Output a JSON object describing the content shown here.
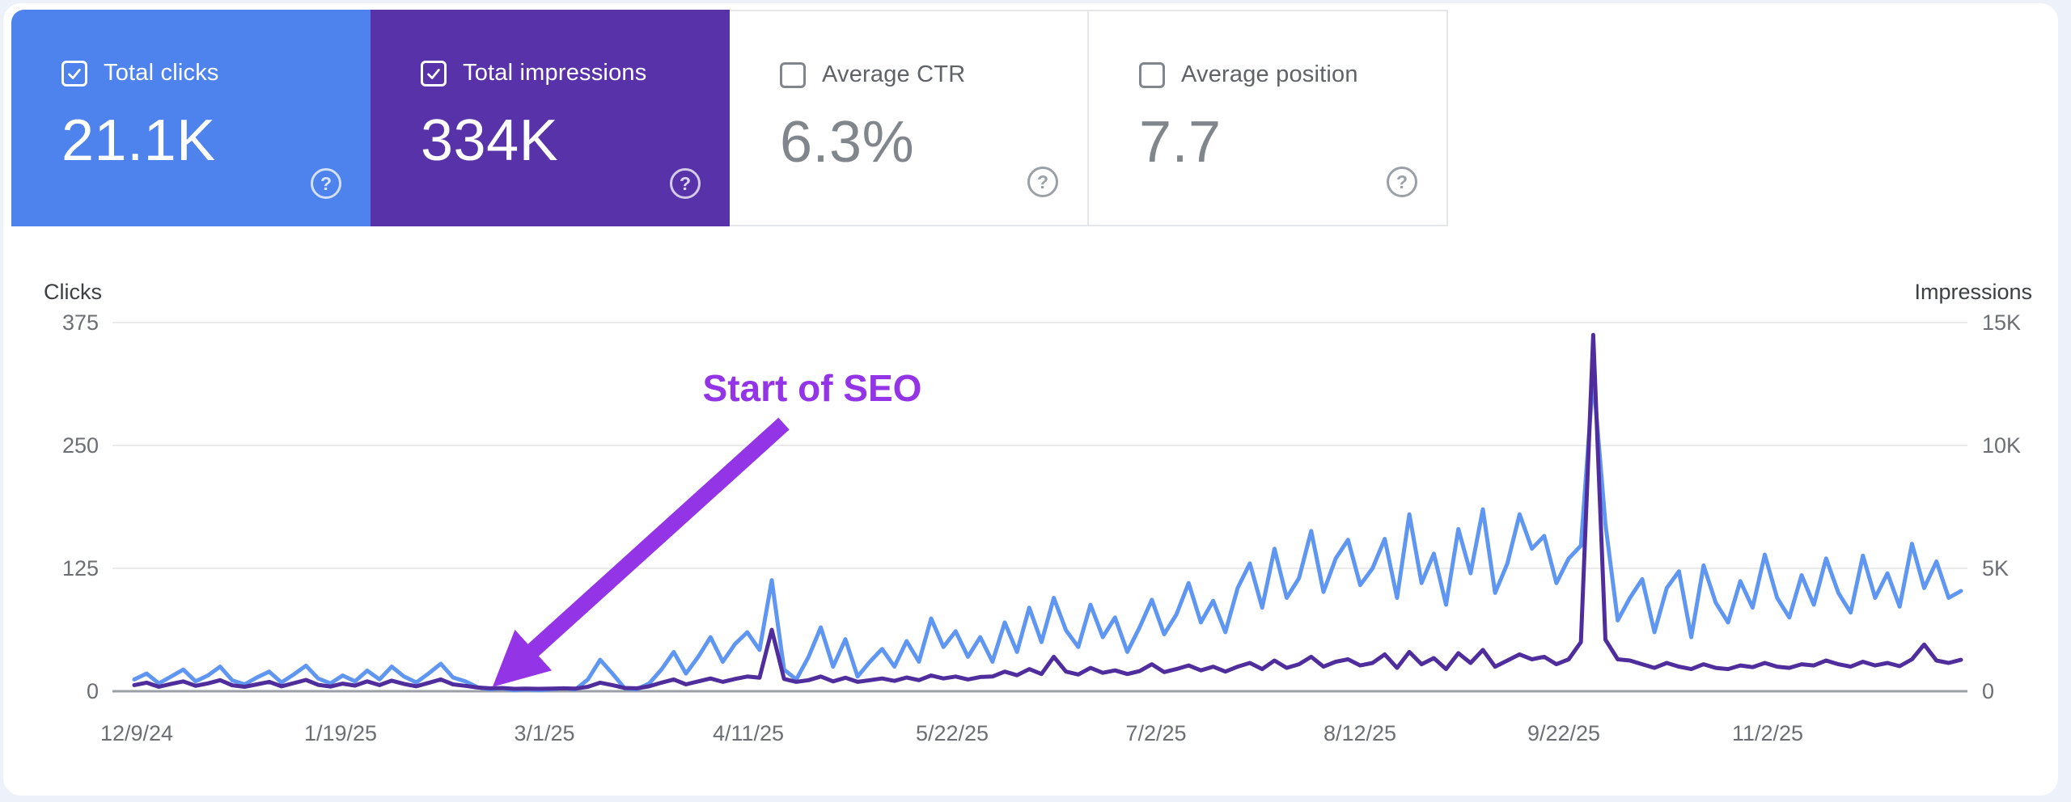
{
  "cards": [
    {
      "label": "Total clicks",
      "value": "21.1K",
      "checked": true,
      "bg": "#4e82ec",
      "fg": "#ffffff"
    },
    {
      "label": "Total impressions",
      "value": "334K",
      "checked": true,
      "bg": "#5832a8",
      "fg": "#ffffff"
    },
    {
      "label": "Average CTR",
      "value": "6.3%",
      "checked": false,
      "bg": "#ffffff",
      "fg": "#80868b"
    },
    {
      "label": "Average position",
      "value": "7.7",
      "checked": false,
      "bg": "#ffffff",
      "fg": "#80868b"
    }
  ],
  "help_glyph": "?",
  "annotation": {
    "label": "Start of SEO",
    "color": "#9334e6"
  },
  "chart_data": {
    "type": "line",
    "title": "",
    "grid": true,
    "legend_position": "none",
    "left_axis": {
      "title": "Clicks",
      "ticks": [
        "375",
        "250",
        "125",
        "0"
      ],
      "range": [
        0,
        375
      ]
    },
    "right_axis": {
      "title": "Impressions",
      "ticks": [
        "15K",
        "10K",
        "5K",
        "0"
      ],
      "range": [
        0,
        15000
      ]
    },
    "x_ticks": [
      "12/9/24",
      "1/19/25",
      "3/1/25",
      "4/11/25",
      "5/22/25",
      "7/2/25",
      "8/12/25",
      "9/22/25",
      "11/2/25"
    ],
    "x_range_note": "daily data 12/9/24 - 12/11/25, values sampled ~every 2.5 days",
    "series": [
      {
        "name": "Clicks",
        "axis": "left",
        "color": "#5f96f2",
        "values": [
          12,
          18,
          8,
          15,
          22,
          10,
          16,
          25,
          11,
          7,
          14,
          20,
          9,
          17,
          26,
          13,
          8,
          16,
          10,
          21,
          12,
          25,
          15,
          9,
          18,
          28,
          14,
          10,
          4,
          2,
          3,
          1,
          2,
          1,
          2,
          3,
          2,
          12,
          32,
          18,
          3,
          2,
          8,
          22,
          40,
          18,
          35,
          55,
          30,
          48,
          60,
          42,
          113,
          22,
          12,
          35,
          65,
          25,
          53,
          15,
          30,
          43,
          25,
          51,
          30,
          74,
          45,
          61,
          35,
          55,
          30,
          70,
          40,
          85,
          50,
          95,
          62,
          45,
          88,
          55,
          75,
          40,
          65,
          93,
          58,
          78,
          110,
          70,
          92,
          60,
          105,
          130,
          85,
          145,
          95,
          115,
          163,
          101,
          135,
          154,
          108,
          125,
          155,
          95,
          180,
          110,
          140,
          88,
          165,
          120,
          185,
          100,
          130,
          180,
          145,
          158,
          110,
          135,
          148,
          320,
          170,
          72,
          95,
          114,
          60,
          105,
          122,
          55,
          128,
          90,
          70,
          112,
          85,
          139,
          95,
          75,
          118,
          88,
          135,
          100,
          80,
          138,
          95,
          120,
          86,
          150,
          105,
          132,
          95,
          102
        ]
      },
      {
        "name": "Impressions",
        "axis": "right",
        "color": "#502d9c",
        "values": [
          250,
          350,
          180,
          300,
          400,
          220,
          320,
          450,
          240,
          180,
          280,
          380,
          200,
          330,
          460,
          260,
          190,
          310,
          230,
          400,
          250,
          430,
          300,
          200,
          340,
          480,
          280,
          220,
          150,
          120,
          130,
          100,
          110,
          100,
          110,
          120,
          110,
          180,
          350,
          250,
          130,
          120,
          200,
          350,
          480,
          280,
          400,
          520,
          380,
          500,
          600,
          550,
          2500,
          500,
          380,
          450,
          600,
          400,
          550,
          380,
          450,
          520,
          420,
          560,
          450,
          640,
          520,
          600,
          480,
          580,
          600,
          800,
          650,
          900,
          700,
          1400,
          800,
          680,
          950,
          750,
          850,
          700,
          820,
          1100,
          780,
          900,
          1050,
          850,
          1000,
          800,
          1000,
          1150,
          900,
          1250,
          950,
          1100,
          1400,
          1000,
          1200,
          1300,
          1050,
          1150,
          1500,
          950,
          1600,
          1100,
          1350,
          900,
          1550,
          1150,
          1680,
          1000,
          1250,
          1500,
          1300,
          1400,
          1100,
          1300,
          2000,
          14500,
          2100,
          1300,
          1250,
          1100,
          950,
          1150,
          1000,
          900,
          1100,
          950,
          900,
          1050,
          980,
          1150,
          1000,
          950,
          1100,
          1050,
          1250,
          1100,
          1000,
          1200,
          1050,
          1150,
          1020,
          1300,
          1900,
          1250,
          1150,
          1280
        ]
      }
    ]
  }
}
